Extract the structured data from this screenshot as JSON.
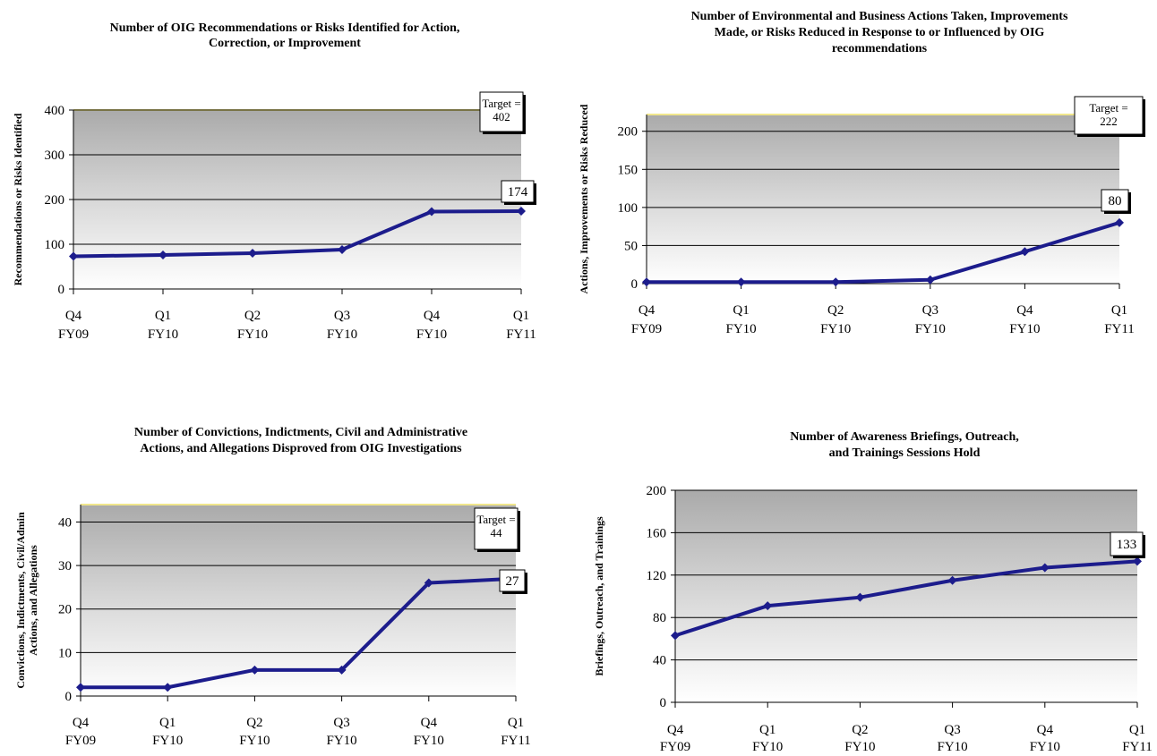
{
  "chart_data": [
    {
      "type": "line",
      "title": [
        "Number of OIG Recommendations or Risks Identified for Action,",
        "Correction, or Improvement"
      ],
      "ylabel": [
        "Recommendations or Risks Identified"
      ],
      "categories": [
        [
          "Q4",
          "FY09"
        ],
        [
          "Q1",
          "FY10"
        ],
        [
          "Q2",
          "FY10"
        ],
        [
          "Q3",
          "FY10"
        ],
        [
          "Q4",
          "FY10"
        ],
        [
          "Q1",
          "FY11"
        ]
      ],
      "values": [
        73,
        76,
        80,
        88,
        173,
        174
      ],
      "ylim": [
        0,
        400
      ],
      "yticks": [
        0,
        100,
        200,
        300,
        400
      ],
      "target": 402,
      "target_label": [
        "Target =",
        "402"
      ],
      "last_label": "174",
      "colors": {
        "line": "#1c1c8c",
        "target_line": "#f0e68c"
      }
    },
    {
      "type": "line",
      "title": [
        "Number of Environmental and Business Actions Taken, Improvements",
        "Made, or Risks Reduced in Response to or Influenced by OIG",
        "recommendations"
      ],
      "ylabel": [
        "Actions, Improvements or Risks Reduced"
      ],
      "categories": [
        [
          "Q4",
          "FY09"
        ],
        [
          "Q1",
          "FY10"
        ],
        [
          "Q2",
          "FY10"
        ],
        [
          "Q3",
          "FY10"
        ],
        [
          "Q4",
          "FY10"
        ],
        [
          "Q1",
          "FY11"
        ]
      ],
      "values": [
        2,
        2,
        2,
        5,
        42,
        80
      ],
      "ylim": [
        0,
        222
      ],
      "yticks": [
        0,
        50,
        100,
        150,
        200
      ],
      "target": 222,
      "target_label": [
        "Target =",
        "222"
      ],
      "last_label": "80",
      "colors": {
        "line": "#1c1c8c",
        "target_line": "#f0e68c"
      }
    },
    {
      "type": "line",
      "title": [
        "Number of Convictions, Indictments, Civil and Administrative",
        "Actions, and Allegations Disproved from OIG Investigations"
      ],
      "ylabel": [
        "Convictions, Indictments, Civil/Admin",
        "Actions, and Allegations"
      ],
      "categories": [
        [
          "Q4",
          "FY09"
        ],
        [
          "Q1",
          "FY10"
        ],
        [
          "Q2",
          "FY10"
        ],
        [
          "Q3",
          "FY10"
        ],
        [
          "Q4",
          "FY10"
        ],
        [
          "Q1",
          "FY11"
        ]
      ],
      "values": [
        2,
        2,
        6,
        6,
        26,
        27
      ],
      "ylim": [
        0,
        44
      ],
      "yticks": [
        0,
        10,
        20,
        30,
        40
      ],
      "target": 44,
      "target_label": [
        "Target =",
        "44"
      ],
      "last_label": "27",
      "colors": {
        "line": "#1c1c8c",
        "target_line": "#f0e68c"
      }
    },
    {
      "type": "line",
      "title": [
        "Number of Awareness Briefings, Outreach,",
        "and Trainings Sessions Hold"
      ],
      "ylabel": [
        "Briefings, Outreach, and Trainings"
      ],
      "categories": [
        [
          "Q4",
          "FY09"
        ],
        [
          "Q1",
          "FY10"
        ],
        [
          "Q2",
          "FY10"
        ],
        [
          "Q3",
          "FY10"
        ],
        [
          "Q4",
          "FY10"
        ],
        [
          "Q1",
          "FY11"
        ]
      ],
      "values": [
        63,
        91,
        99,
        115,
        127,
        133
      ],
      "ylim": [
        0,
        200
      ],
      "yticks": [
        0,
        40,
        80,
        120,
        160,
        200
      ],
      "target": null,
      "last_label": "133",
      "colors": {
        "line": "#1c1c8c"
      }
    }
  ]
}
